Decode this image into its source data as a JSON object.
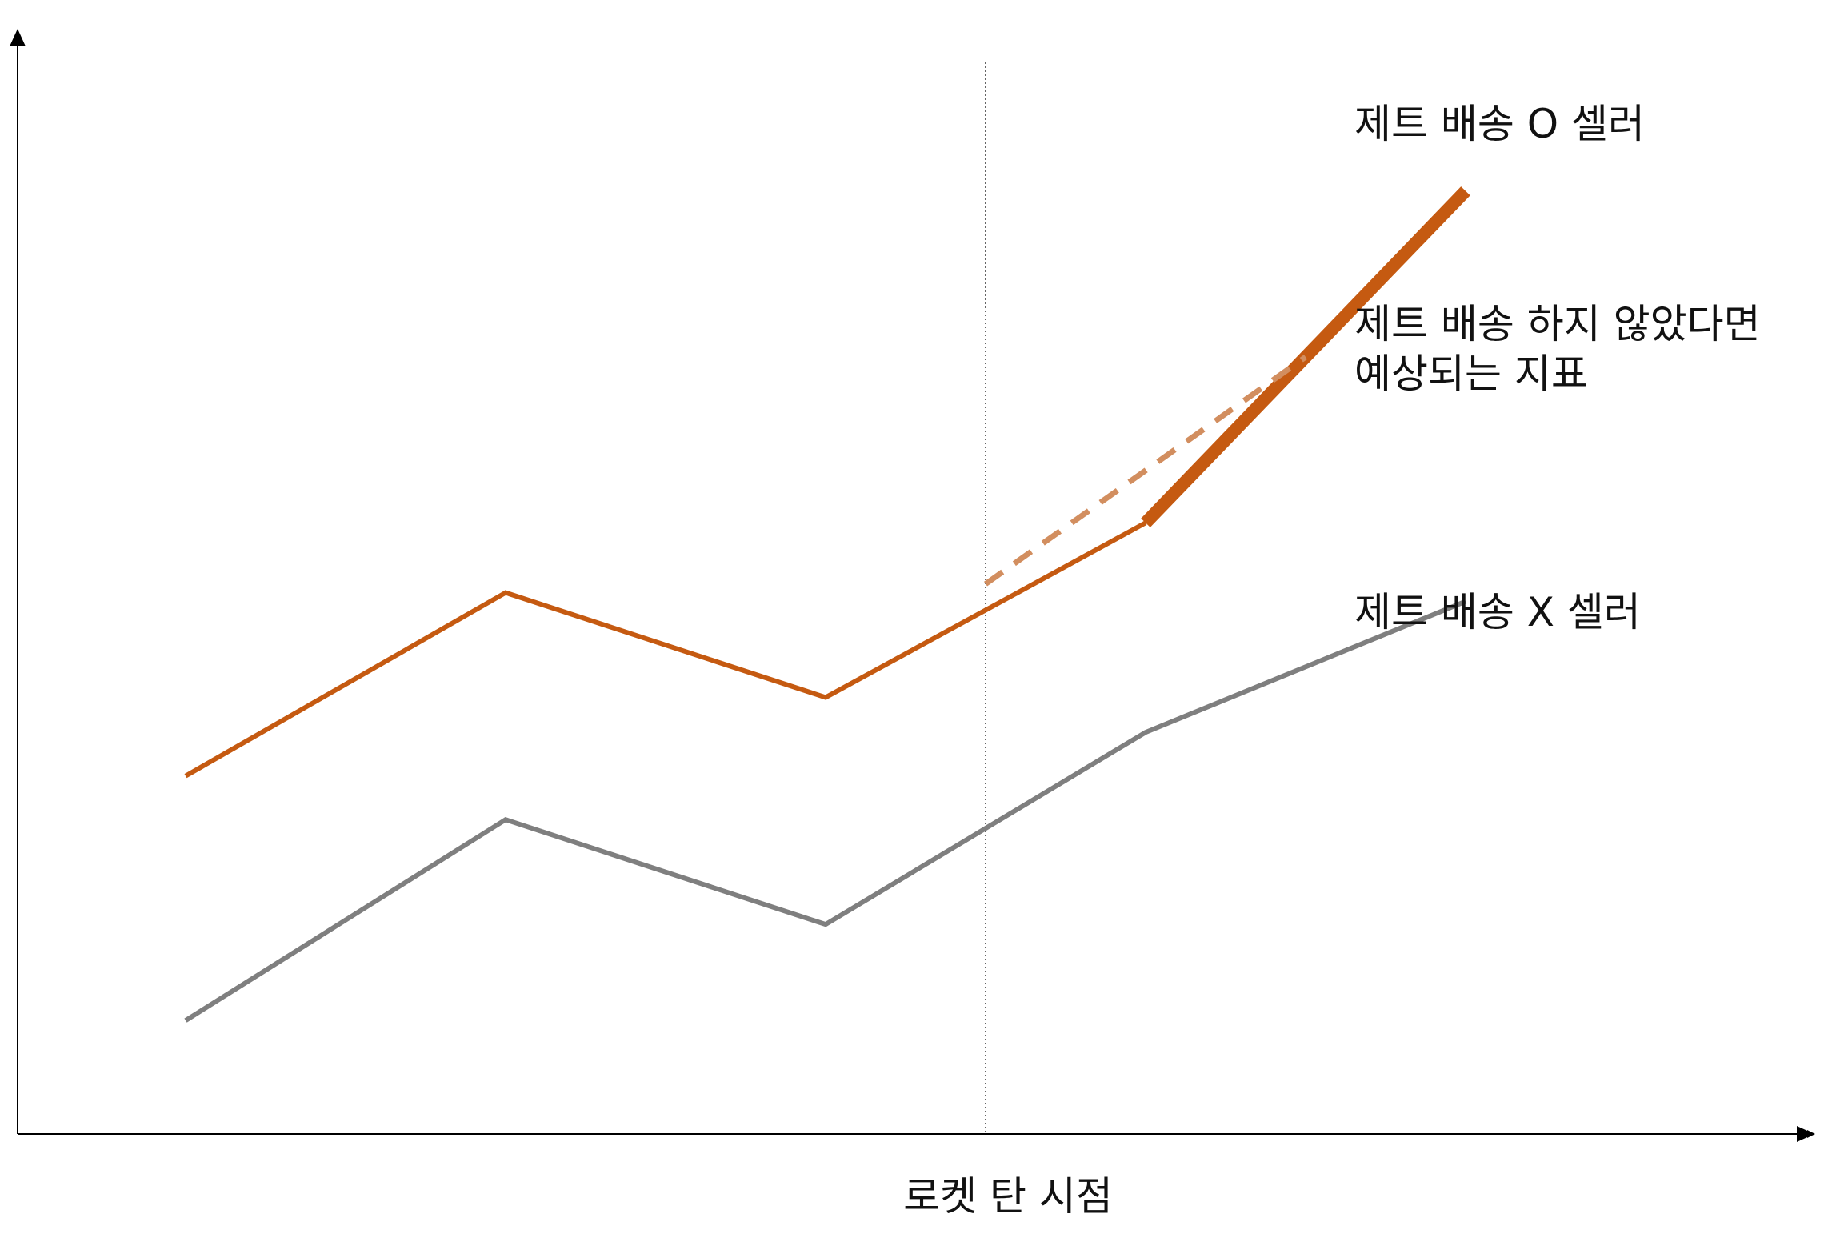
{
  "chart_data": {
    "type": "line",
    "x": [
      0,
      1,
      2,
      3,
      4
    ],
    "ylim": [
      0,
      10
    ],
    "xlabel": "로켓 탄 시점",
    "event_x": 2.5,
    "series": [
      {
        "key": "jet-o",
        "values": [
          4.1,
          6.2,
          5.0,
          7.0,
          10.8
        ],
        "color": "#c55a11",
        "label_lines": [
          "제트 배송 O 셀러"
        ]
      },
      {
        "key": "counterfactual",
        "x": [
          2.5,
          3.5
        ],
        "values": [
          6.3,
          8.9
        ],
        "color": "#d28e5f",
        "style": "dashed",
        "label_lines": [
          "제트 배송 하지 않았다면",
          "예상되는 지표"
        ]
      },
      {
        "key": "jet-x",
        "values": [
          1.3,
          3.6,
          2.4,
          4.6,
          6.1
        ],
        "color": "#7f7f7f",
        "label_lines": [
          "제트 배송 X 셀러"
        ]
      }
    ]
  }
}
